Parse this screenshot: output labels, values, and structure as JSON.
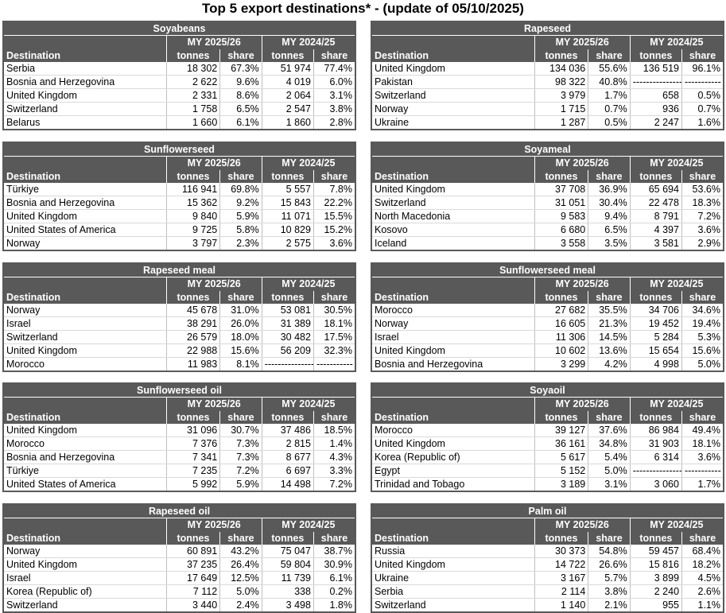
{
  "title": "Top 5 export destinations* - (update of 05/10/2025)",
  "headers": {
    "destination": "Destination",
    "period_current": "MY 2025/26",
    "period_previous": "MY 2024/25",
    "tonnes": "tonnes",
    "share": "share"
  },
  "panels": [
    {
      "name": "Soyabeans",
      "rows": [
        [
          "Serbia",
          "18 302",
          "67.3%",
          "51 974",
          "77.4%"
        ],
        [
          "Bosnia and Herzegovina",
          "2 622",
          "9.6%",
          "4 019",
          "6.0%"
        ],
        [
          "United Kingdom",
          "2 331",
          "8.6%",
          "2 064",
          "3.1%"
        ],
        [
          "Switzerland",
          "1 758",
          "6.5%",
          "2 547",
          "3.8%"
        ],
        [
          "Belarus",
          "1 660",
          "6.1%",
          "1 860",
          "2.8%"
        ]
      ]
    },
    {
      "name": "Rapeseed",
      "rows": [
        [
          "United Kingdom",
          "134 036",
          "55.6%",
          "136 519",
          "96.1%"
        ],
        [
          "Pakistan",
          "98 322",
          "40.8%",
          "-----------------",
          "-----------"
        ],
        [
          "Switzerland",
          "3 979",
          "1.7%",
          "658",
          "0.5%"
        ],
        [
          "Norway",
          "1 715",
          "0.7%",
          "936",
          "0.7%"
        ],
        [
          "Ukraine",
          "1 287",
          "0.5%",
          "2 247",
          "1.6%"
        ]
      ]
    },
    {
      "name": "Sunflowerseed",
      "rows": [
        [
          "Türkiye",
          "116 941",
          "69.8%",
          "5 557",
          "7.8%"
        ],
        [
          "Bosnia and Herzegovina",
          "15 362",
          "9.2%",
          "15 843",
          "22.2%"
        ],
        [
          "United Kingdom",
          "9 840",
          "5.9%",
          "11 071",
          "15.5%"
        ],
        [
          "United States of America",
          "9 725",
          "5.8%",
          "10 829",
          "15.2%"
        ],
        [
          "Norway",
          "3 797",
          "2.3%",
          "2 575",
          "3.6%"
        ]
      ]
    },
    {
      "name": "Soyameal",
      "rows": [
        [
          "United Kingdom",
          "37 708",
          "36.9%",
          "65 694",
          "53.6%"
        ],
        [
          "Switzerland",
          "31 051",
          "30.4%",
          "22 478",
          "18.3%"
        ],
        [
          "North Macedonia",
          "9 583",
          "9.4%",
          "8 791",
          "7.2%"
        ],
        [
          "Kosovo",
          "6 680",
          "6.5%",
          "4 397",
          "3.6%"
        ],
        [
          "Iceland",
          "3 558",
          "3.5%",
          "3 581",
          "2.9%"
        ]
      ]
    },
    {
      "name": "Rapeseed meal",
      "rows": [
        [
          "Norway",
          "45 678",
          "31.0%",
          "53 081",
          "30.5%"
        ],
        [
          "Israel",
          "38 291",
          "26.0%",
          "31 389",
          "18.1%"
        ],
        [
          "Switzerland",
          "26 579",
          "18.0%",
          "30 482",
          "17.5%"
        ],
        [
          "United Kingdom",
          "22 988",
          "15.6%",
          "56 209",
          "32.3%"
        ],
        [
          "Morocco",
          "11 983",
          "8.1%",
          "-----------------",
          "-----------"
        ]
      ]
    },
    {
      "name": "Sunflowerseed meal",
      "rows": [
        [
          "Morocco",
          "27 682",
          "35.5%",
          "34 706",
          "34.6%"
        ],
        [
          "Norway",
          "16 605",
          "21.3%",
          "19 452",
          "19.4%"
        ],
        [
          "Israel",
          "11 306",
          "14.5%",
          "5 284",
          "5.3%"
        ],
        [
          "United Kingdom",
          "10 602",
          "13.6%",
          "15 654",
          "15.6%"
        ],
        [
          "Bosnia and Herzegovina",
          "3 299",
          "4.2%",
          "4 998",
          "5.0%"
        ]
      ]
    },
    {
      "name": "Sunflowerseed oil",
      "rows": [
        [
          "United Kingdom",
          "31 096",
          "30.7%",
          "37 486",
          "18.5%"
        ],
        [
          "Morocco",
          "7 376",
          "7.3%",
          "2 815",
          "1.4%"
        ],
        [
          "Bosnia and Herzegovina",
          "7 341",
          "7.3%",
          "8 677",
          "4.3%"
        ],
        [
          "Türkiye",
          "7 235",
          "7.2%",
          "6 697",
          "3.3%"
        ],
        [
          "United States of America",
          "5 992",
          "5.9%",
          "14 498",
          "7.2%"
        ]
      ]
    },
    {
      "name": "Soyaoil",
      "rows": [
        [
          "Morocco",
          "39 127",
          "37.6%",
          "86 984",
          "49.4%"
        ],
        [
          "United Kingdom",
          "36 161",
          "34.8%",
          "31 903",
          "18.1%"
        ],
        [
          "Korea (Republic of)",
          "5 617",
          "5.4%",
          "6 314",
          "3.6%"
        ],
        [
          "Egypt",
          "5 152",
          "5.0%",
          "-----------------",
          "-----------"
        ],
        [
          "Trinidad and Tobago",
          "3 189",
          "3.1%",
          "3 060",
          "1.7%"
        ]
      ]
    },
    {
      "name": "Rapeseed oil",
      "rows": [
        [
          "Norway",
          "60 891",
          "43.2%",
          "75 047",
          "38.7%"
        ],
        [
          "United Kingdom",
          "37 235",
          "26.4%",
          "59 804",
          "30.9%"
        ],
        [
          "Israel",
          "17 649",
          "12.5%",
          "11 739",
          "6.1%"
        ],
        [
          "Korea (Republic of)",
          "7 112",
          "5.0%",
          "338",
          "0.2%"
        ],
        [
          "Switzerland",
          "3 440",
          "2.4%",
          "3 498",
          "1.8%"
        ]
      ]
    },
    {
      "name": "Palm oil",
      "rows": [
        [
          "Russia",
          "30 373",
          "54.8%",
          "59 457",
          "68.4%"
        ],
        [
          "United Kingdom",
          "14 722",
          "26.6%",
          "15 816",
          "18.2%"
        ],
        [
          "Ukraine",
          "3 167",
          "5.7%",
          "3 899",
          "4.5%"
        ],
        [
          "Serbia",
          "2 114",
          "3.8%",
          "2 240",
          "2.6%"
        ],
        [
          "Switzerland",
          "1 140",
          "2.1%",
          "955",
          "1.1%"
        ]
      ]
    }
  ]
}
